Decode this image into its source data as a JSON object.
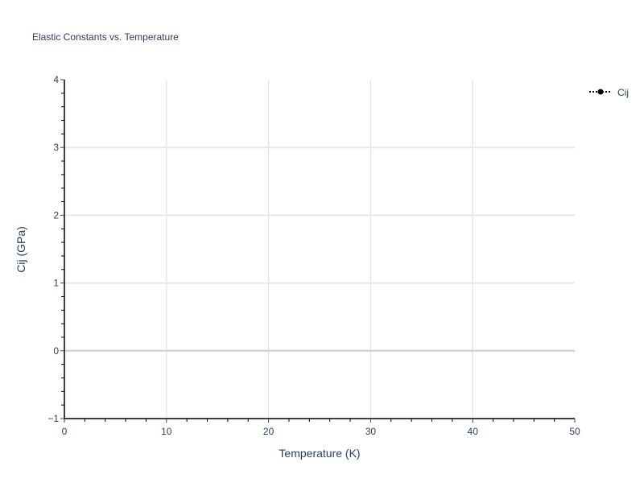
{
  "chart_data": {
    "type": "line",
    "title": "Elastic Constants vs. Temperature",
    "xlabel": "Temperature (K)",
    "ylabel": "Cij (GPa)",
    "xlim": [
      0,
      50
    ],
    "ylim": [
      -1,
      4
    ],
    "xticks": [
      "0",
      "10",
      "20",
      "30",
      "40",
      "50"
    ],
    "yticks": [
      "−1",
      "0",
      "1",
      "2",
      "3",
      "4"
    ],
    "grid": true,
    "legend_position": "top-right",
    "series": [
      {
        "name": "Cij",
        "x": [],
        "y": [],
        "color": "#000000",
        "line_style": "dotted",
        "marker": "circle"
      }
    ]
  }
}
